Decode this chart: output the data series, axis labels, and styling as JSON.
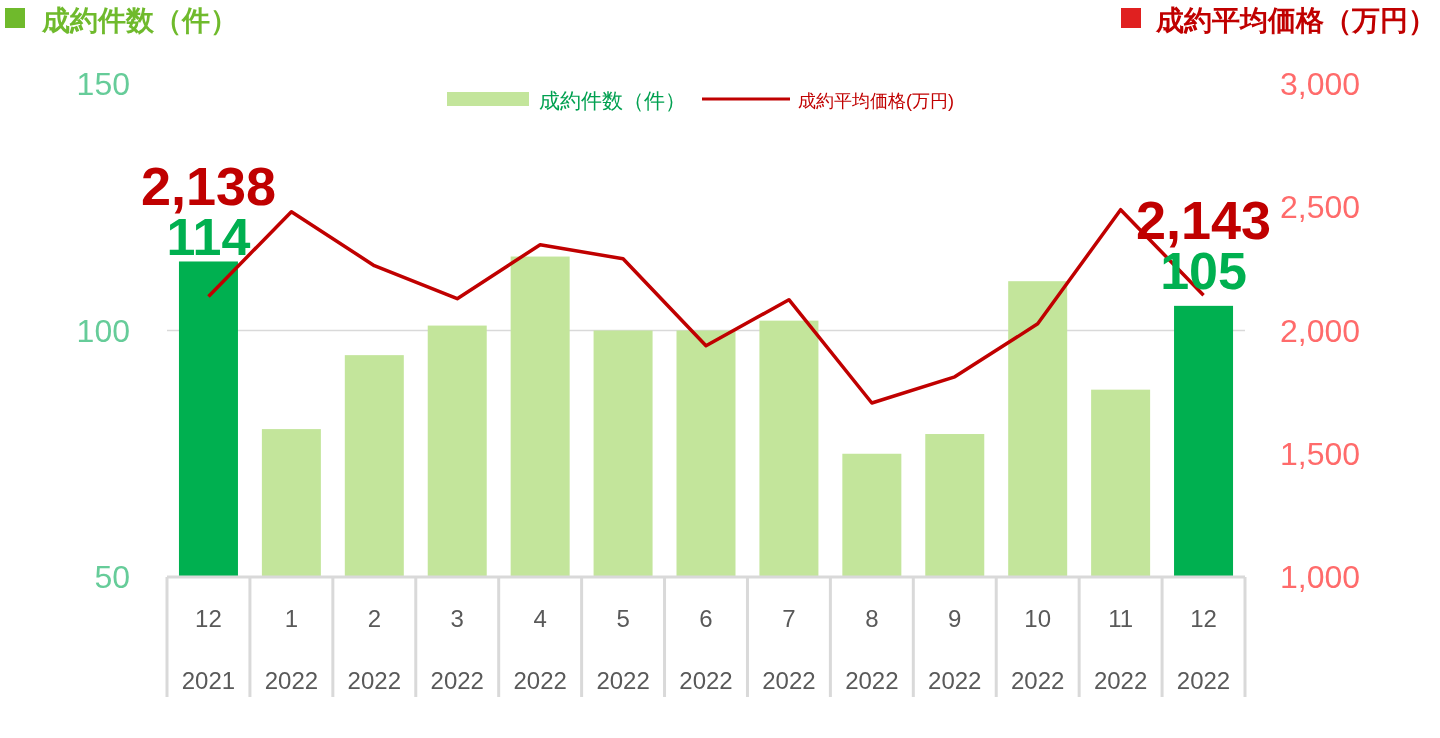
{
  "chart_data": {
    "type": "bar",
    "ylabel": "成約件数（件）",
    "y2label": "成約平均価格（万円）",
    "categories": [
      "12\n2021",
      "1\n2022",
      "2\n2022",
      "3\n2022",
      "4\n2022",
      "5\n2022",
      "6\n2022",
      "7\n2022",
      "8\n2022",
      "9\n2022",
      "10\n2022",
      "11\n2022",
      "12\n2022"
    ],
    "series": [
      {
        "name": "成約件数（件）",
        "color": "#c3e59b",
        "colors": [
          "#00b050",
          "#c3e59b",
          "#c3e59b",
          "#c3e59b",
          "#c3e59b",
          "#c3e59b",
          "#c3e59b",
          "#c3e59b",
          "#c3e59b",
          "#c3e59b",
          "#c3e59b",
          "#c3e59b",
          "#00b050"
        ],
        "values": [
          114,
          80,
          95,
          101,
          115,
          100,
          100,
          102,
          75,
          79,
          110,
          88,
          105
        ],
        "value_labels": [
          "114",
          null,
          null,
          null,
          null,
          null,
          null,
          null,
          null,
          null,
          null,
          null,
          "105"
        ]
      },
      {
        "name": "成約平均価格(万円)",
        "type": "line",
        "axis": "y2",
        "color": "#c00000",
        "values": [
          2138,
          2482,
          2263,
          2129,
          2348,
          2291,
          1938,
          2125,
          1706,
          1812,
          2027,
          2490,
          2143
        ],
        "value_labels": [
          "2,138",
          null,
          null,
          null,
          null,
          null,
          null,
          null,
          null,
          null,
          null,
          null,
          "2,143"
        ]
      }
    ],
    "ylim": [
      50,
      150
    ],
    "yticks": [
      50,
      100,
      150
    ],
    "y2lim": [
      1000,
      3000
    ],
    "y2ticks": [
      {
        "value": 1000,
        "label": "1,000"
      },
      {
        "value": 1500,
        "label": "1,500"
      },
      {
        "value": 2000,
        "label": "2,000"
      },
      {
        "value": 2500,
        "label": "2,500"
      },
      {
        "value": 3000,
        "label": "3,000"
      }
    ],
    "grid": "y",
    "legend": "top",
    "marker": "none",
    "line_style": "solid"
  }
}
